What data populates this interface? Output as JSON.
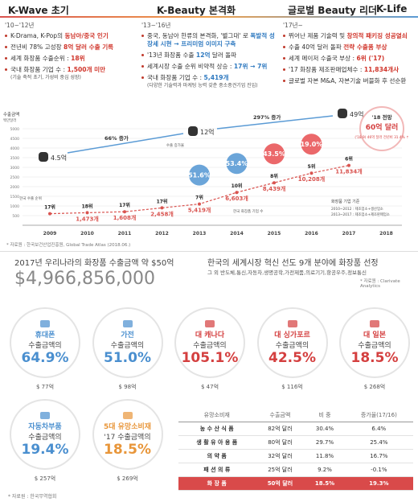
{
  "header": {
    "phases": [
      "K-Wave 초기",
      "K-Beauty 본격화",
      "글로벌 Beauty 리더",
      "K-Life"
    ]
  },
  "phases": [
    {
      "period": "'10~'12년",
      "items": [
        {
          "parts": [
            "K-Drama, K-Pop의 ",
            "동남아/중국 인기"
          ]
        },
        {
          "parts": [
            "전년비 78% 고성장 ",
            "8억 달러 수출 기록"
          ]
        },
        {
          "parts": [
            "세계 화장품 수출순위 : ",
            "18위"
          ]
        },
        {
          "parts": [
            "국내 화장품 기업 수 : ",
            "1,500개 미만"
          ],
          "note": "(기술 축적 초기, 가성비 중심 성장)"
        }
      ]
    },
    {
      "period": "'13~'16년",
      "items": [
        {
          "parts": [
            "중국, 동남아 한류의 본격화, '별그대' 로 ",
            "폭발적 성장세 시현 → 프리미엄 이미지 구축"
          ]
        },
        {
          "parts": [
            "'13년 화장품 수출 ",
            "12억",
            " 달러 돌파"
          ]
        },
        {
          "parts": [
            "세계시장 수출 순위 비약적 상승 : ",
            "17위 → 7위"
          ]
        },
        {
          "parts": [
            "국내 화장품 기업 수 : ",
            "5,419개"
          ],
          "note": "(다양한 기술력과 마케팅 능력 갖춘 중소중견기업 진입)"
        }
      ]
    },
    {
      "period": "'17년~",
      "items": [
        {
          "parts": [
            "뛰어난 제품 기술력 및 ",
            "창의적 패키징 성공열쇠"
          ]
        },
        {
          "parts": [
            "수출 40억 달러 돌파 ",
            "전략 수출품 부상"
          ]
        },
        {
          "parts": [
            "세계 메이저 수출국 부상 : ",
            "6위 ('17)"
          ]
        },
        {
          "parts": [
            "'17 화장품 제조판매업체수 : ",
            "11,834개사"
          ]
        },
        {
          "parts": [
            "글로벌 자본 M&A, 자본기술 버블화 후 선순환"
          ]
        }
      ]
    }
  ],
  "chart_data": {
    "type": "line",
    "ylabel": "수출금액",
    "yunit": "백만달러",
    "categories": [
      "2009",
      "2010",
      "2011",
      "2012",
      "2013",
      "2014",
      "2015",
      "2016",
      "2017",
      "2018"
    ],
    "series": [
      {
        "name": "한국 화장품 기업 수",
        "color": "#d9534f",
        "values": [
          600,
          650,
          700,
          900,
          1100,
          1700,
          2200,
          2700,
          3100,
          null
        ]
      }
    ],
    "ylim": [
      0,
      5000
    ],
    "yticks": [
      500,
      1000,
      1500,
      2000,
      2500,
      3000,
      3500,
      4000,
      4500,
      5000
    ],
    "ranks": [
      "17위",
      "18위",
      "17위",
      "17위",
      "7위",
      "10위",
      "8위",
      "5위",
      "6위",
      null
    ],
    "companies": [
      null,
      "1,473개",
      "1,608개",
      "2,458개",
      "5,419개",
      "6,603개",
      "8,439개",
      "10,208개",
      "11,834개",
      null
    ],
    "growth": [
      null,
      null,
      null,
      null,
      "51.6%",
      "53.4%",
      "43.5%",
      "19.0%",
      null,
      null
    ],
    "growth_colors": [
      null,
      null,
      null,
      null,
      "#5b9bd5",
      "#5b9bd5",
      "#e9585a",
      "#e9585a",
      null,
      null
    ],
    "exports": [
      "4.5억",
      null,
      null,
      null,
      "12억",
      null,
      null,
      null,
      "49억",
      null
    ],
    "annotations": [
      "66% 증가",
      "297% 증가"
    ],
    "labels": {
      "rank": "한국 수출 순위",
      "companies": "한국 화장품 기업 수",
      "growth": "수출 증가율"
    },
    "forecast": {
      "title": "'18 전망",
      "value": "60억 달러",
      "note": "('18.9) 46억 달러 전년비 31.4% ↑"
    },
    "legend": {
      "title": "화장품 기업 기준",
      "lines": [
        "2010~2012 : 제조업소+생산업소",
        "2013~2017 : 제조업소+제조판매업소"
      ]
    },
    "source": "* 자료원 : 한국보건산업진흥원, Global Trade Atlas (2018.06.)"
  },
  "summary": {
    "title": "2017년 우리나라의 화장품 수출금액 약 $50억",
    "amount": "$4,966,856,000"
  },
  "innovation": {
    "title": "한국의 세계시장 혁신 선도 9개 분야에 화장품 선정",
    "others": "그 외 반도체,통신,자동차,생명공학,가전제품,의료기기,항공우주,정보통신",
    "source": "* 자료원 : Clarivate Analytics"
  },
  "cards": [
    {
      "label": "휴대폰",
      "sub": "수출금액의",
      "value": "64.9%",
      "amount": "$ 77억",
      "color": "#4a8fcf"
    },
    {
      "label": "가전",
      "sub": "수출금액의",
      "value": "51.0%",
      "amount": "$ 98억",
      "color": "#4a8fcf"
    },
    {
      "label": "대 캐나다",
      "sub": "수출금액의",
      "value": "105.1%",
      "amount": "$ 47억",
      "color": "#d43f3f"
    },
    {
      "label": "대 싱가포르",
      "sub": "수출금액의",
      "value": "42.5%",
      "amount": "$ 116억",
      "color": "#d43f3f"
    },
    {
      "label": "대 일본",
      "sub": "수출금액의",
      "value": "18.5%",
      "amount": "$ 268억",
      "color": "#d43f3f"
    },
    {
      "label": "자동차부품",
      "sub": "수출금액의",
      "value": "19.4%",
      "amount": "$ 257억",
      "color": "#4a8fcf"
    },
    {
      "label": "5대 유망소비재",
      "sub": "'17 수출금액의",
      "value": "18.5%",
      "amount": "$ 269억",
      "color": "#e8963a"
    }
  ],
  "table": {
    "header": [
      "유망소비재",
      "수출금액",
      "비 중",
      "증가율(17/16)"
    ],
    "rows": [
      [
        "농 수 산 식 품",
        "82억 달러",
        "30.4%",
        "6.4%"
      ],
      [
        "생 활 유 아 용 품",
        "80억 달러",
        "29.7%",
        "25.4%"
      ],
      [
        "의 약 품",
        "32억 달러",
        "11.8%",
        "16.7%"
      ],
      [
        "패 션 의 류",
        "25억 달러",
        "9.2%",
        "-0.1%"
      ],
      [
        "화 장 품",
        "50억 달러",
        "18.5%",
        "19.3%"
      ]
    ]
  },
  "source": "* 자료원 : 한국무역협회"
}
